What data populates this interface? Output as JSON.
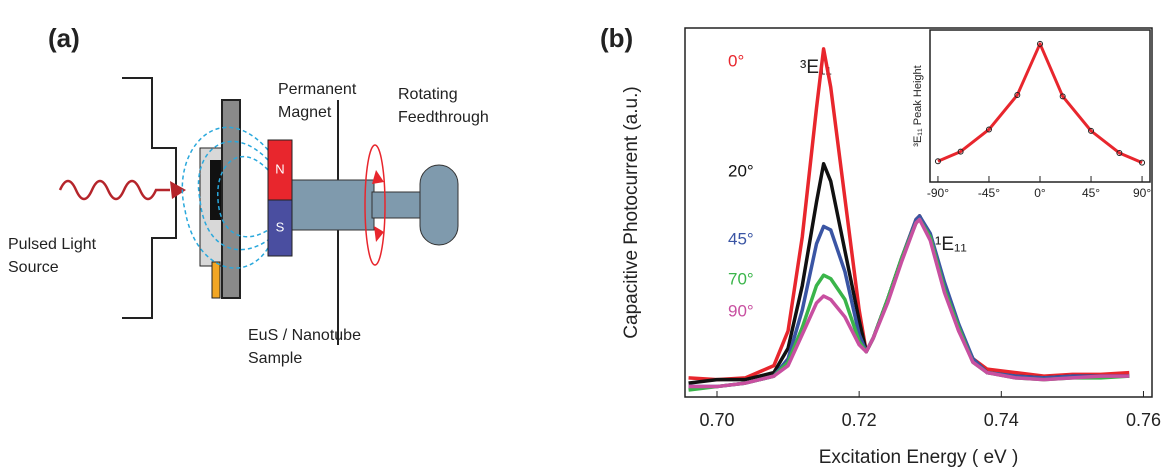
{
  "diagram": {
    "label": "(a)",
    "light_source": [
      "Pulsed Light",
      "Source"
    ],
    "sample": [
      "EuS / Nanotube",
      "Sample"
    ],
    "magnet": [
      "Permanent",
      "Magnet"
    ],
    "feedthrough": [
      "Rotating",
      "Feedthrough"
    ],
    "north": "N",
    "south": "S"
  },
  "chart_data": [
    {
      "type": "line",
      "panel_label": "(b)",
      "x_label": "Excitation Energy ( eV )",
      "y_label": "Capacitive Photocurrent (a.u.)",
      "annotations": [
        "³E₁₁",
        "¹E₁₁"
      ],
      "x": [
        0.696,
        0.7,
        0.704,
        0.708,
        0.71,
        0.712,
        0.714,
        0.715,
        0.716,
        0.718,
        0.72,
        0.721,
        0.722,
        0.724,
        0.726,
        0.728,
        0.7285,
        0.73,
        0.732,
        0.734,
        0.736,
        0.738,
        0.742,
        0.746,
        0.75,
        0.754,
        0.758
      ],
      "series": [
        {
          "name": "0°",
          "color": "#e8262d",
          "values": [
            0.055,
            0.05,
            0.055,
            0.09,
            0.19,
            0.46,
            0.83,
            1.0,
            0.89,
            0.57,
            0.25,
            0.13,
            0.17,
            0.28,
            0.4,
            0.51,
            0.52,
            0.46,
            0.31,
            0.19,
            0.11,
            0.08,
            0.07,
            0.06,
            0.065,
            0.065,
            0.07
          ]
        },
        {
          "name": "20°",
          "color": "#111111",
          "values": [
            0.04,
            0.05,
            0.05,
            0.07,
            0.14,
            0.32,
            0.56,
            0.67,
            0.62,
            0.42,
            0.22,
            0.13,
            0.17,
            0.28,
            0.4,
            0.5,
            0.52,
            0.46,
            0.32,
            0.2,
            0.11,
            0.07,
            0.06,
            0.055,
            0.06,
            0.06,
            0.06
          ]
        },
        {
          "name": "45°",
          "color": "#3a55a4",
          "values": [
            0.03,
            0.03,
            0.04,
            0.06,
            0.11,
            0.25,
            0.44,
            0.49,
            0.48,
            0.36,
            0.18,
            0.13,
            0.17,
            0.28,
            0.4,
            0.51,
            0.52,
            0.47,
            0.33,
            0.21,
            0.11,
            0.07,
            0.06,
            0.055,
            0.06,
            0.06,
            0.06
          ]
        },
        {
          "name": "70°",
          "color": "#3ab54a",
          "values": [
            0.02,
            0.03,
            0.04,
            0.06,
            0.1,
            0.2,
            0.32,
            0.35,
            0.34,
            0.28,
            0.16,
            0.13,
            0.17,
            0.28,
            0.4,
            0.5,
            0.51,
            0.46,
            0.31,
            0.2,
            0.1,
            0.07,
            0.055,
            0.05,
            0.055,
            0.055,
            0.06
          ]
        },
        {
          "name": "90°",
          "color": "#c84fa0",
          "values": [
            0.03,
            0.03,
            0.04,
            0.06,
            0.09,
            0.18,
            0.27,
            0.29,
            0.28,
            0.23,
            0.15,
            0.13,
            0.17,
            0.27,
            0.39,
            0.5,
            0.51,
            0.45,
            0.3,
            0.19,
            0.1,
            0.07,
            0.055,
            0.05,
            0.055,
            0.06,
            0.06
          ]
        }
      ],
      "xlim": [
        0.6955,
        0.7612
      ],
      "ylim": [
        0,
        1.06
      ],
      "xticks": [
        {
          "value": 0.7,
          "label": "0.70"
        },
        {
          "value": 0.72,
          "label": "0.72"
        },
        {
          "value": 0.74,
          "label": "0.74"
        },
        {
          "value": 0.76,
          "label": "0.76"
        }
      ]
    },
    {
      "type": "line",
      "y_label": "³E₁₁ Peak Height",
      "markers": true,
      "x": [
        -90,
        -70,
        -45,
        -20,
        0,
        20,
        45,
        70,
        90
      ],
      "series": [
        {
          "name": null,
          "color": "#e8262d",
          "values": [
            0.15,
            0.22,
            0.38,
            0.63,
            1.0,
            0.62,
            0.37,
            0.21,
            0.14
          ]
        }
      ],
      "xlim": [
        -97,
        97
      ],
      "ylim": [
        0,
        1.1
      ],
      "xticks": [
        {
          "value": -90,
          "label": "-90°"
        },
        {
          "value": -45,
          "label": "-45°"
        },
        {
          "value": 0,
          "label": "0°"
        },
        {
          "value": 45,
          "label": "45°"
        },
        {
          "value": 90,
          "label": "90°"
        }
      ]
    }
  ]
}
